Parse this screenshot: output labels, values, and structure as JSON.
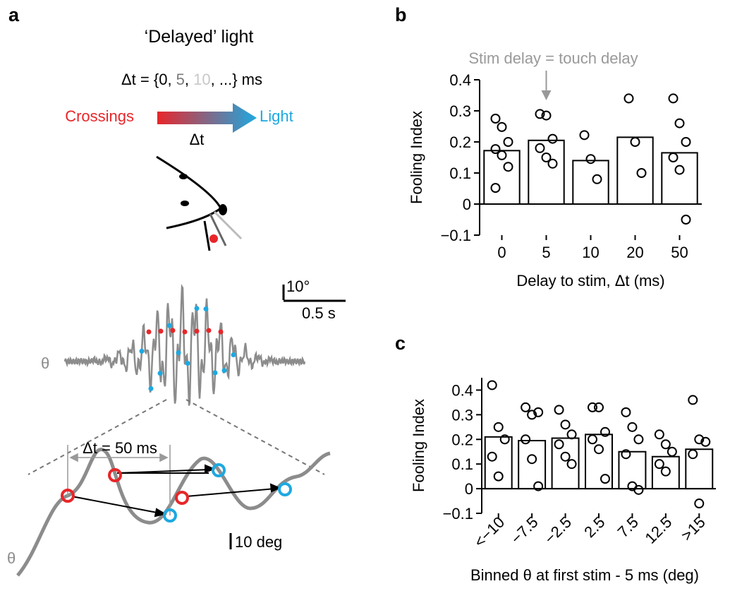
{
  "panel_a": {
    "label": "a",
    "title": "‘Delayed’ light",
    "delay_parts": [
      {
        "text": "Δt = {0, ",
        "color": "#000000"
      },
      {
        "text": "5",
        "color": "#7a7a7a"
      },
      {
        "text": ", ",
        "color": "#000000"
      },
      {
        "text": "10",
        "color": "#c8c8c8"
      },
      {
        "text": ", ...} ms",
        "color": "#000000"
      }
    ],
    "crossings": "Crossings",
    "light": "Light",
    "arrow_label": "Δt",
    "scale_angle": "10°",
    "scale_time": "0.5 s",
    "theta_top": "θ",
    "zoom_delay": "Δt = 50 ms",
    "zoom_scale": "10 deg",
    "theta_bottom": "θ"
  },
  "chart_data": [
    {
      "type": "bar",
      "label": "b",
      "annotation": "Stim delay = touch delay",
      "ylabel": "Fooling Index",
      "xlabel": "Delay to stim, Δt (ms)",
      "categories": [
        "0",
        "5",
        "10",
        "20",
        "50"
      ],
      "values": [
        0.172,
        0.205,
        0.14,
        0.215,
        0.165
      ],
      "points": [
        [
          0.275,
          0.248,
          0.2,
          0.177,
          0.157,
          0.12,
          0.052
        ],
        [
          0.29,
          0.285,
          0.21,
          0.18,
          0.15,
          0.13
        ],
        [
          0.222,
          0.145,
          0.08
        ],
        [
          0.34,
          0.2,
          0.1
        ],
        [
          0.34,
          0.26,
          0.2,
          0.15,
          0.11,
          -0.05
        ]
      ],
      "color": "#ffffff",
      "edge_color": "#000000",
      "ylim": [
        -0.1,
        0.4
      ],
      "yticks": [
        {
          "value": -0.1,
          "label": "−0.1"
        },
        0,
        0.1,
        0.2,
        0.3,
        0.4
      ]
    },
    {
      "type": "bar",
      "label": "c",
      "ylabel": "Fooling Index",
      "xlabel": "Binned θ at first stim - 5 ms (deg)",
      "categories": [
        "<−10",
        "−7.5",
        "−2.5",
        "2.5",
        "7.5",
        "12.5",
        ">15"
      ],
      "values": [
        0.21,
        0.195,
        0.205,
        0.22,
        0.15,
        0.13,
        0.16
      ],
      "points": [
        [
          0.42,
          0.25,
          0.2,
          0.13,
          0.05
        ],
        [
          0.33,
          0.3,
          0.31,
          0.2,
          0.12,
          0.01
        ],
        [
          0.32,
          0.26,
          0.22,
          0.18,
          0.13,
          0.1
        ],
        [
          0.33,
          0.33,
          0.23,
          0.2,
          0.16,
          0.04
        ],
        [
          0.31,
          0.25,
          0.2,
          0.14,
          0.01,
          -0.005
        ],
        [
          0.22,
          0.18,
          0.15,
          0.1,
          0.07
        ],
        [
          0.36,
          0.2,
          0.19,
          0.14,
          -0.06
        ]
      ],
      "color": "#ffffff",
      "edge_color": "#000000",
      "ylim": [
        -0.1,
        0.45
      ],
      "yticks": [
        {
          "value": -0.1,
          "label": "−0.1"
        },
        0,
        0.1,
        0.2,
        0.3,
        0.4
      ]
    }
  ]
}
